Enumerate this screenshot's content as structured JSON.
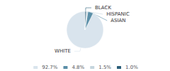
{
  "chart_data": {
    "type": "pie",
    "categories": [
      "WHITE",
      "ASIAN",
      "HISPANIC",
      "BLACK"
    ],
    "values": [
      92.7,
      4.8,
      1.5,
      1.0
    ],
    "value_labels": [
      "92.7%",
      "4.8%",
      "1.5%",
      "1.0%"
    ],
    "colors": [
      "#d9e4ed",
      "#5b8fa8",
      "#c5d5de",
      "#2c5f7a"
    ],
    "legend": "bottom"
  }
}
